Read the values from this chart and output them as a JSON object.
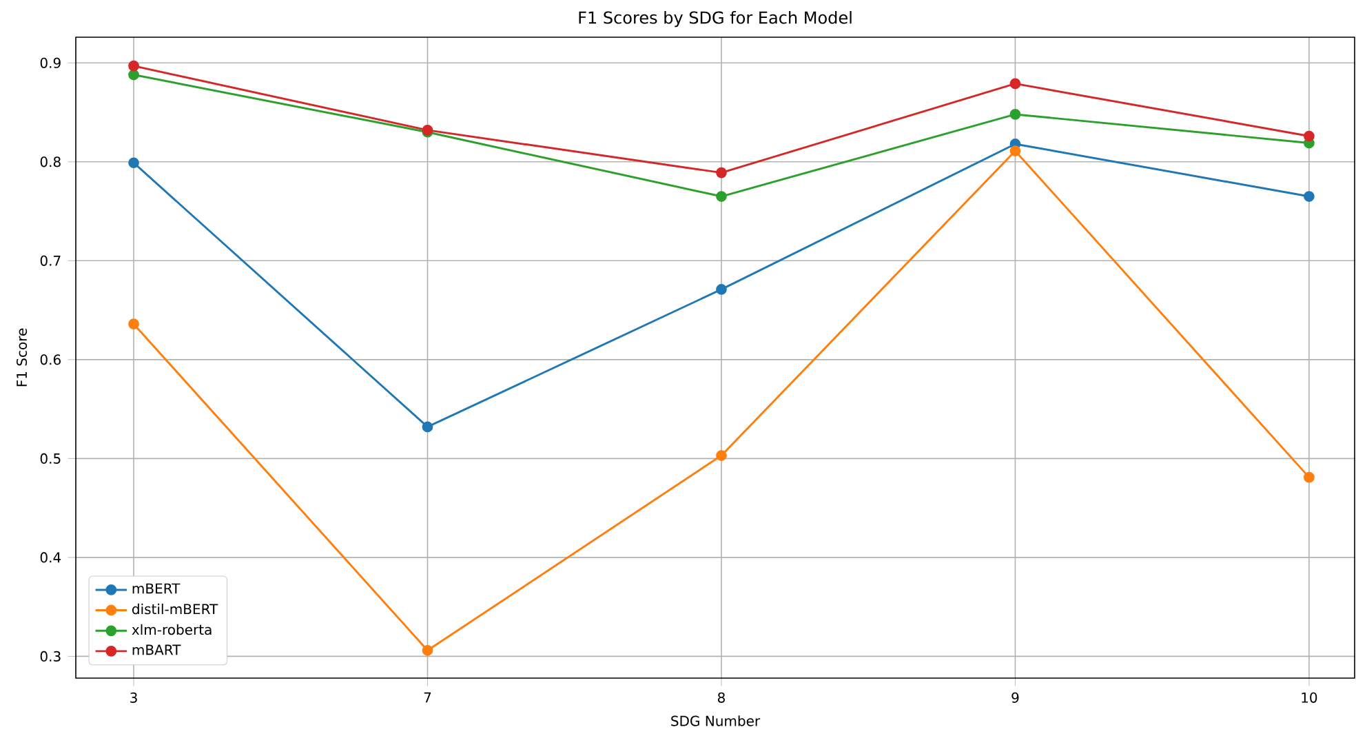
{
  "chart_data": {
    "type": "line",
    "title": "F1 Scores by SDG for Each Model",
    "xlabel": "SDG Number",
    "ylabel": "F1 Score",
    "categories": [
      "3",
      "7",
      "8",
      "9",
      "10"
    ],
    "series": [
      {
        "name": "mBERT",
        "color": "#1f77b4",
        "values": [
          0.799,
          0.532,
          0.671,
          0.818,
          0.765
        ]
      },
      {
        "name": "distil-mBERT",
        "color": "#ff7f0e",
        "values": [
          0.636,
          0.306,
          0.503,
          0.811,
          0.481
        ]
      },
      {
        "name": "xlm-roberta",
        "color": "#2ca02c",
        "values": [
          0.888,
          0.83,
          0.765,
          0.848,
          0.819
        ]
      },
      {
        "name": "mBART",
        "color": "#d62728",
        "values": [
          0.897,
          0.832,
          0.789,
          0.879,
          0.826
        ]
      }
    ],
    "ylim": [
      0.278,
      0.926
    ],
    "yticks": [
      0.3,
      0.4,
      0.5,
      0.6,
      0.7,
      0.8,
      0.9
    ],
    "grid": true,
    "legend": "bottom left",
    "marker": "circle",
    "line_style": "solid"
  }
}
